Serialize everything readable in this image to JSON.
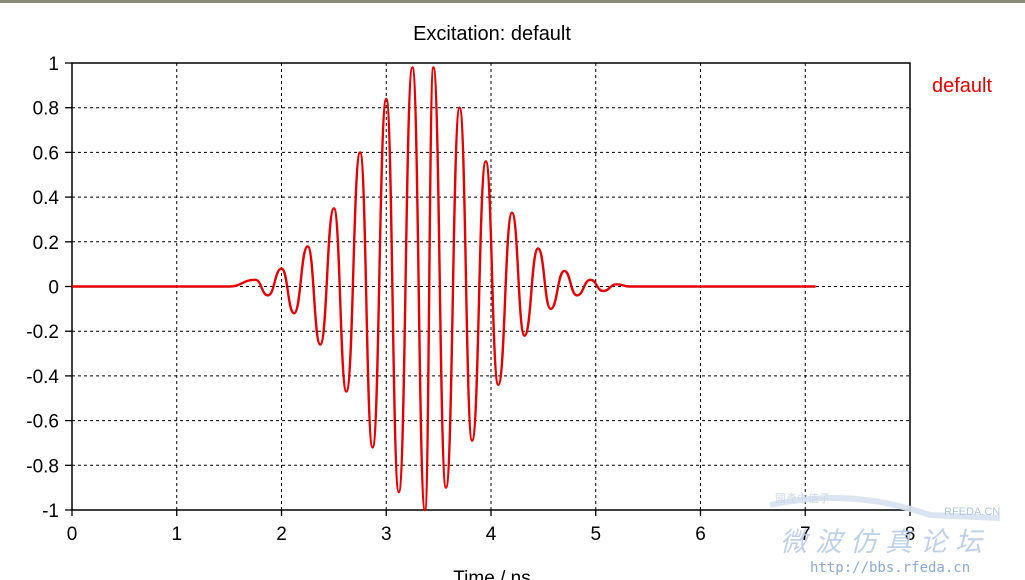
{
  "chart_data": {
    "type": "line",
    "title": "Excitation: default",
    "xlabel": "Time / ns",
    "ylabel": "",
    "xlim": [
      0,
      8
    ],
    "ylim": [
      -1,
      1
    ],
    "x_ticks": [
      "0",
      "1",
      "2",
      "3",
      "4",
      "5",
      "6",
      "7",
      "8"
    ],
    "y_ticks": [
      "1",
      "0.8",
      "0.6",
      "0.4",
      "0.2",
      "0",
      "-0.2",
      "-0.4",
      "-0.6",
      "-0.8",
      "-1"
    ],
    "grid": true,
    "legend_position": "top-right",
    "series": [
      {
        "name": "default",
        "color": "#e60000",
        "x": [
          0,
          1.0,
          1.5,
          1.75,
          1.87,
          2.0,
          2.12,
          2.25,
          2.37,
          2.5,
          2.62,
          2.75,
          2.87,
          3.0,
          3.12,
          3.25,
          3.37,
          3.45,
          3.57,
          3.7,
          3.82,
          3.95,
          4.07,
          4.2,
          4.32,
          4.45,
          4.57,
          4.7,
          4.82,
          4.95,
          5.07,
          5.2,
          5.32,
          5.45,
          5.6,
          5.75,
          6.0,
          7.1
        ],
        "y": [
          0,
          0,
          0,
          0.03,
          -0.04,
          0.08,
          -0.12,
          0.18,
          -0.26,
          0.35,
          -0.47,
          0.6,
          -0.72,
          0.84,
          -0.92,
          0.98,
          -1.0,
          0.98,
          -0.9,
          0.8,
          -0.69,
          0.56,
          -0.44,
          0.33,
          -0.22,
          0.17,
          -0.1,
          0.07,
          -0.04,
          0.03,
          -0.02,
          0.01,
          0,
          0,
          0,
          0,
          0,
          0
        ]
      }
    ]
  },
  "watermark": {
    "brand": "RFEDA.CN",
    "small_text": "國產中值子",
    "forum_name": "微波仿真论坛",
    "url": "http://bbs.rfeda.cn"
  }
}
